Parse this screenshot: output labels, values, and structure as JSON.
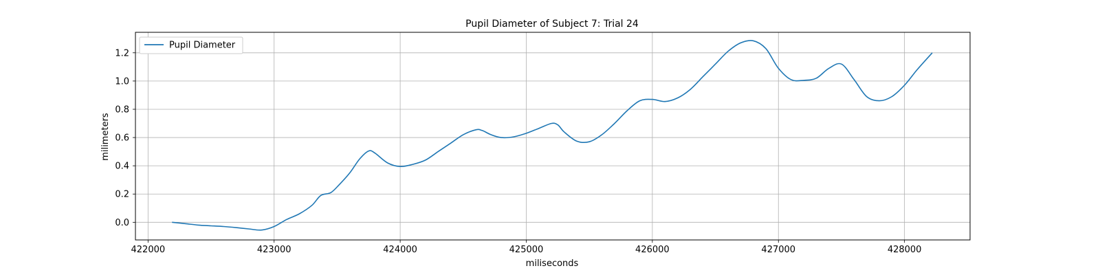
{
  "chart_data": {
    "type": "line",
    "title": "Pupil Diameter of Subject 7: Trial 24",
    "xlabel": "miliseconds",
    "ylabel": "milimeters",
    "xlim": [
      421900,
      428520
    ],
    "ylim": [
      -0.125,
      1.345
    ],
    "xticks": [
      422000,
      423000,
      424000,
      425000,
      426000,
      427000,
      428000
    ],
    "xtick_labels": [
      "422000",
      "423000",
      "424000",
      "425000",
      "426000",
      "427000",
      "428000"
    ],
    "yticks": [
      0.0,
      0.2,
      0.4,
      0.6,
      0.8,
      1.0,
      1.2
    ],
    "ytick_labels": [
      "0.0",
      "0.2",
      "0.4",
      "0.6",
      "0.8",
      "1.0",
      "1.2"
    ],
    "grid": true,
    "legend_position": "upper-left",
    "series": [
      {
        "name": "Pupil Diameter",
        "color": "#1f77b4",
        "x": [
          422190,
          422300,
          422400,
          422500,
          422600,
          422700,
          422800,
          422900,
          423000,
          423100,
          423200,
          423300,
          423370,
          423450,
          423520,
          423600,
          423680,
          423750,
          423800,
          423900,
          424000,
          424100,
          424200,
          424300,
          424400,
          424500,
          424600,
          424650,
          424720,
          424800,
          424900,
          425000,
          425100,
          425200,
          425250,
          425300,
          425400,
          425500,
          425600,
          425700,
          425800,
          425900,
          426000,
          426100,
          426200,
          426300,
          426400,
          426500,
          426600,
          426700,
          426800,
          426900,
          427000,
          427100,
          427200,
          427300,
          427400,
          427500,
          427600,
          427700,
          427800,
          427900,
          428000,
          428100,
          428220
        ],
        "y": [
          0.0,
          -0.01,
          -0.02,
          -0.025,
          -0.03,
          -0.038,
          -0.047,
          -0.055,
          -0.03,
          0.02,
          0.06,
          0.12,
          0.19,
          0.21,
          0.27,
          0.35,
          0.45,
          0.505,
          0.49,
          0.42,
          0.395,
          0.41,
          0.44,
          0.5,
          0.56,
          0.62,
          0.655,
          0.65,
          0.62,
          0.6,
          0.605,
          0.63,
          0.665,
          0.7,
          0.69,
          0.64,
          0.575,
          0.57,
          0.62,
          0.7,
          0.79,
          0.86,
          0.87,
          0.855,
          0.88,
          0.94,
          1.03,
          1.12,
          1.21,
          1.27,
          1.285,
          1.23,
          1.09,
          1.01,
          1.005,
          1.02,
          1.09,
          1.12,
          1.01,
          0.89,
          0.86,
          0.89,
          0.97,
          1.08,
          1.2
        ]
      }
    ]
  }
}
